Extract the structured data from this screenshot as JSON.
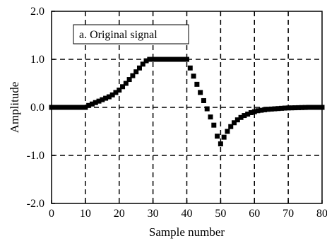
{
  "chart_data": {
    "type": "scatter",
    "title": "",
    "annotation": "a. Original signal",
    "xlabel": "Sample number",
    "ylabel": "Amplitude",
    "xlim": [
      0,
      80
    ],
    "ylim": [
      -2.0,
      2.0
    ],
    "xticks": [
      0,
      10,
      20,
      30,
      40,
      50,
      60,
      70,
      80
    ],
    "xtick_labels": [
      "0",
      "10",
      "20",
      "30",
      "40",
      "50",
      "60",
      "70",
      "80"
    ],
    "yticks": [
      2.0,
      1.0,
      0.0,
      -1.0,
      -2.0
    ],
    "ytick_labels": [
      "2.0",
      "1.0",
      "0.0",
      "-1.0",
      "-2.0"
    ],
    "grid": "dashed",
    "marker": "square",
    "marker_color": "#000000",
    "series": [
      {
        "x": [
          0,
          1,
          2,
          3,
          4,
          5,
          6,
          7,
          8,
          9,
          10,
          11,
          12,
          13,
          14,
          15,
          16,
          17,
          18,
          19,
          20,
          21,
          22,
          23,
          24,
          25,
          26,
          27,
          28,
          29,
          30,
          31,
          32,
          33,
          34,
          35,
          36,
          37,
          38,
          39,
          40,
          41,
          42,
          43,
          44,
          45,
          46,
          47,
          48,
          49,
          50,
          51,
          52,
          53,
          54,
          55,
          56,
          57,
          58,
          59,
          60,
          61,
          62,
          63,
          64,
          65,
          66,
          67,
          68,
          69,
          70,
          71,
          72,
          73,
          74,
          75,
          76,
          77,
          78,
          79,
          80
        ],
        "y": [
          0,
          0,
          0,
          0,
          0,
          0,
          0,
          0,
          0,
          0,
          0,
          0.04,
          0.07,
          0.1,
          0.13,
          0.16,
          0.19,
          0.22,
          0.26,
          0.31,
          0.36,
          0.43,
          0.5,
          0.58,
          0.66,
          0.74,
          0.82,
          0.9,
          0.97,
          1.0,
          1.0,
          1.0,
          1.0,
          1.0,
          1.0,
          1.0,
          1.0,
          1.0,
          1.0,
          1.0,
          1.0,
          0.82,
          0.65,
          0.48,
          0.31,
          0.14,
          -0.03,
          -0.2,
          -0.37,
          -0.6,
          -0.76,
          -0.62,
          -0.5,
          -0.4,
          -0.32,
          -0.26,
          -0.21,
          -0.17,
          -0.14,
          -0.11,
          -0.09,
          -0.07,
          -0.06,
          -0.05,
          -0.04,
          -0.035,
          -0.03,
          -0.025,
          -0.02,
          -0.015,
          -0.012,
          -0.01,
          -0.008,
          -0.006,
          -0.004,
          -0.002,
          0,
          0,
          0,
          0,
          0
        ]
      }
    ]
  }
}
